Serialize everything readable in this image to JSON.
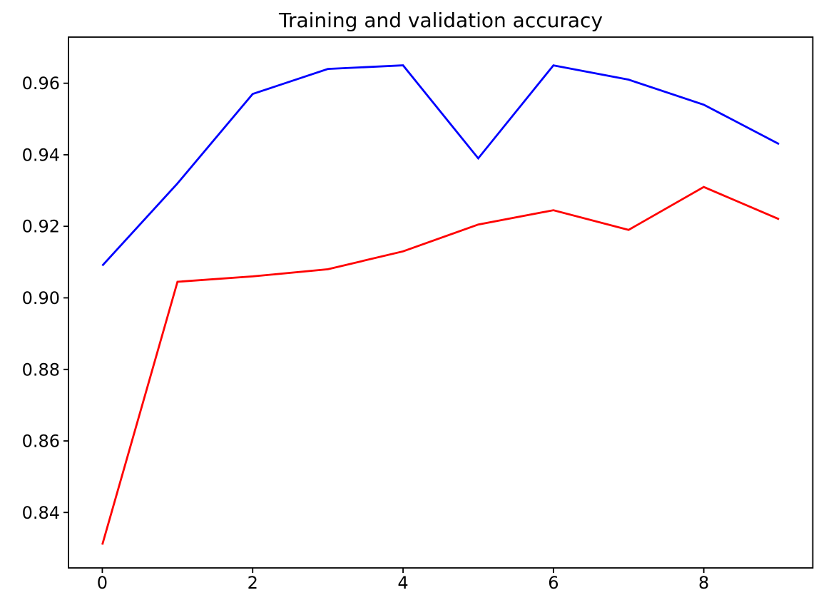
{
  "figure": {
    "background": "#ffffff",
    "axes_color": "#000000"
  },
  "chart_data": {
    "type": "line",
    "title": "Training and validation accuracy",
    "xlabel": "",
    "ylabel": "",
    "x": [
      0,
      1,
      2,
      3,
      4,
      5,
      6,
      7,
      8,
      9
    ],
    "series": [
      {
        "name": "blue-line",
        "color": "#0000ff",
        "values": [
          0.909,
          0.932,
          0.957,
          0.964,
          0.965,
          0.939,
          0.965,
          0.961,
          0.954,
          0.943
        ]
      },
      {
        "name": "red-line",
        "color": "#ff0000",
        "values": [
          0.831,
          0.9045,
          0.906,
          0.908,
          0.913,
          0.9205,
          0.9245,
          0.919,
          0.931,
          0.922
        ]
      }
    ],
    "xticks": {
      "values": [
        0,
        2,
        4,
        6,
        8
      ],
      "labels": [
        "0",
        "2",
        "4",
        "6",
        "8"
      ]
    },
    "yticks": {
      "values": [
        0.84,
        0.86,
        0.88,
        0.9,
        0.92,
        0.94,
        0.96
      ],
      "labels": [
        "0.84",
        "0.86",
        "0.88",
        "0.90",
        "0.92",
        "0.94",
        "0.96"
      ]
    },
    "xlim": [
      -0.45,
      9.45
    ],
    "ylim": [
      0.8245,
      0.9729
    ],
    "grid": false,
    "legend": null,
    "line_width": 2.8
  }
}
